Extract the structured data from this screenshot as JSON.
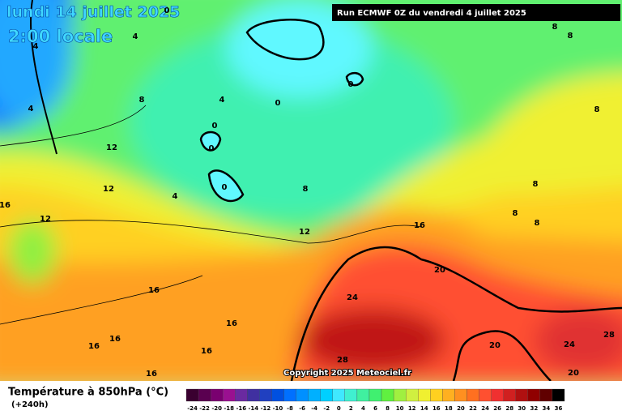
{
  "header": {
    "date": "lundi 14 juillet 2025",
    "time": "2:00 locale",
    "run": "Run ECMWF 0Z du vendredi 4 juillet 2025"
  },
  "copyright": "Copyright 2025 Meteociel.fr",
  "legend": {
    "title": "Température à 850hPa (°C)",
    "lead": "(+240h)",
    "ticks": [
      -24,
      -22,
      -20,
      -18,
      -16,
      -14,
      -12,
      -10,
      -8,
      -6,
      -4,
      -2,
      0,
      2,
      4,
      6,
      8,
      10,
      12,
      14,
      16,
      18,
      20,
      22,
      24,
      26,
      28,
      30,
      32,
      34,
      36
    ],
    "colors": [
      "#3a0030",
      "#5a0050",
      "#7a0070",
      "#9a1090",
      "#6a2aa0",
      "#4030a0",
      "#2040c0",
      "#0050e0",
      "#0070ff",
      "#0090ff",
      "#00b0ff",
      "#00d0ff",
      "#40e8ff",
      "#40f0d0",
      "#40f0a0",
      "#40f070",
      "#60f040",
      "#a0f040",
      "#d0f040",
      "#f0f030",
      "#ffd020",
      "#ffb020",
      "#ff9020",
      "#ff7020",
      "#ff5030",
      "#f03030",
      "#d02020",
      "#b01010",
      "#900000",
      "#600000",
      "#000000"
    ]
  },
  "contour_labels": [
    0,
    4,
    4,
    4,
    8,
    12,
    4,
    0,
    0,
    0,
    0,
    0,
    12,
    4,
    8,
    16,
    12,
    12,
    16,
    20,
    16,
    24,
    16,
    16,
    16,
    16,
    28,
    20,
    24,
    28,
    20,
    16,
    8,
    8,
    8,
    8,
    8,
    8
  ]
}
